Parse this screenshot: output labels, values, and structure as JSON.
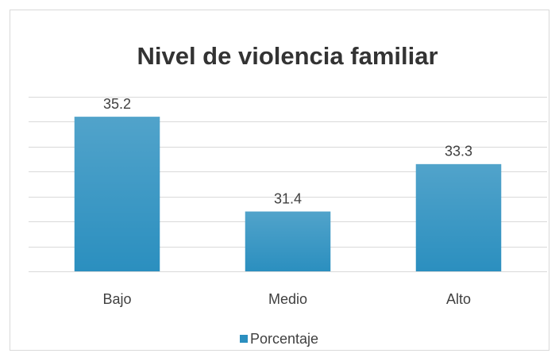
{
  "chart_data": {
    "type": "bar",
    "title": "Nivel de violencia familiar",
    "categories": [
      "Bajo",
      "Medio",
      "Alto"
    ],
    "series": [
      {
        "name": "Porcentaje",
        "color": "#2b8fbf",
        "values": [
          35.2,
          31.4,
          33.3
        ]
      }
    ],
    "ylim": [
      29,
      36
    ],
    "yticks": [
      29,
      30,
      31,
      32,
      33,
      34,
      35,
      36
    ],
    "grid": true,
    "legend": "bottom"
  }
}
